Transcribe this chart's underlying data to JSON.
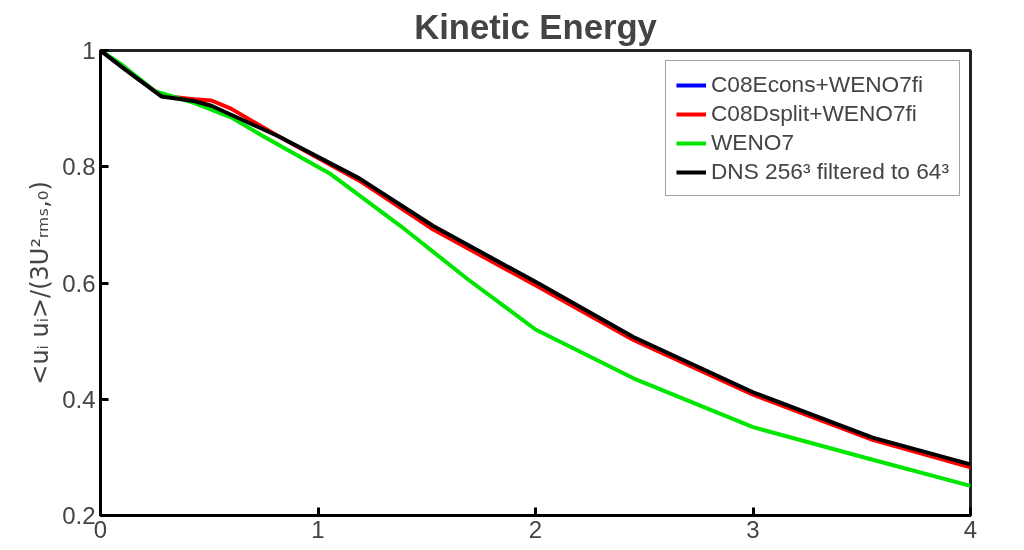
{
  "chart_data": {
    "type": "line",
    "title": "Kinetic Energy",
    "ylabel": "<uᵢ uᵢ>/(3U²ᵣₘₛ,₀)",
    "xlim": [
      0,
      4
    ],
    "ylim": [
      0.2,
      1
    ],
    "xticks": [
      0,
      1,
      2,
      3,
      4
    ],
    "yticks": [
      {
        "value": 0.2,
        "label": "0.2"
      },
      {
        "value": 0.4,
        "label": "0.4"
      },
      {
        "value": 0.6,
        "label": "0.6"
      },
      {
        "value": 0.8,
        "label": "0.8"
      },
      {
        "value": 1,
        "label": "1"
      }
    ],
    "grid": false,
    "legend": "top right",
    "line_style": "solid",
    "series": [
      {
        "name": "C08Econs+WENO7fi",
        "color": "#0000ff",
        "values": [
          null,
          null,
          null,
          null,
          null,
          null,
          null,
          null,
          null,
          null,
          null,
          null,
          null,
          null
        ]
      },
      {
        "name": "C08Dsplit+WENO7fi",
        "color": "#ff0000",
        "x": [
          0,
          0.1,
          0.28,
          0.43,
          0.51,
          0.6,
          0.82,
          1.19,
          1.53,
          2.0,
          2.45,
          3.0,
          3.55,
          4.0
        ],
        "values": [
          1.0,
          0.972,
          0.922,
          0.916,
          0.914,
          0.9,
          0.852,
          0.776,
          0.692,
          0.596,
          0.502,
          0.408,
          0.33,
          0.283
        ]
      },
      {
        "name": "WENO7",
        "color": "#00e600",
        "x": [
          0,
          0.1,
          0.25,
          0.43,
          0.6,
          0.75,
          1.06,
          1.38,
          1.69,
          2.0,
          2.45,
          3.0,
          3.55,
          4.0
        ],
        "values": [
          1.0,
          0.975,
          0.93,
          0.91,
          0.885,
          0.852,
          0.787,
          0.698,
          0.606,
          0.52,
          0.436,
          0.352,
          0.296,
          0.251
        ]
      },
      {
        "name": "DNS 256³ filtered to 64³",
        "color": "#000000",
        "x": [
          0,
          0.1,
          0.28,
          0.43,
          0.51,
          0.82,
          1.19,
          1.53,
          2.0,
          2.45,
          3.0,
          3.55,
          4.0
        ],
        "values": [
          1.0,
          0.971,
          0.921,
          0.913,
          0.905,
          0.852,
          0.78,
          0.698,
          0.602,
          0.507,
          0.412,
          0.334,
          0.288
        ]
      }
    ]
  }
}
